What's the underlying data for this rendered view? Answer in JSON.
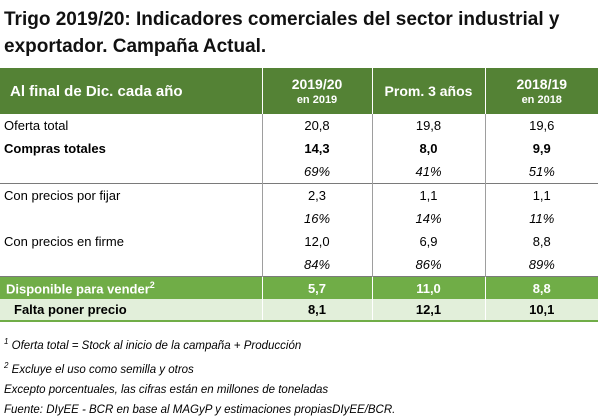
{
  "title": "Trigo 2019/20: Indicadores comerciales del sector industrial y exportador. Campaña Actual.",
  "header": {
    "label": "Al final de Dic. cada año",
    "col1_main": "2019/20",
    "col1_sub": "en 2019",
    "col2": "Prom. 3 años",
    "col3_main": "2018/19",
    "col3_sub": "en 2018"
  },
  "rows": [
    {
      "label": "Oferta total",
      "v1": "20,8",
      "v2": "19,8",
      "v3": "19,6"
    },
    {
      "label": "Compras totales",
      "v1": "14,3",
      "v2": "8,0",
      "v3": "9,9"
    },
    {
      "label": "",
      "v1": "69%",
      "v2": "41%",
      "v3": "51%"
    },
    {
      "label": "Con precios por fijar",
      "v1": "2,3",
      "v2": "1,1",
      "v3": "1,1"
    },
    {
      "label": "",
      "v1": "16%",
      "v2": "14%",
      "v3": "11%"
    },
    {
      "label": "Con precios en firme",
      "v1": "12,0",
      "v2": "6,9",
      "v3": "8,8"
    },
    {
      "label": "",
      "v1": "84%",
      "v2": "86%",
      "v3": "89%"
    },
    {
      "label": "Disponible para vender",
      "sup": "2",
      "v1": "5,7",
      "v2": "11,0",
      "v3": "8,8"
    },
    {
      "label": "Falta poner precio",
      "v1": "8,1",
      "v2": "12,1",
      "v3": "10,1"
    }
  ],
  "notes": {
    "n1_sup": "1",
    "n1": "Oferta total = Stock al inicio de la campaña + Producción",
    "n2_sup": "2",
    "n2": "Excluye el uso como semilla y otros",
    "n3": "Excepto porcentuales, las cifras están en millones de toneladas",
    "n4": "Fuente: DIyEE - BCR en base al MAGyP y estimaciones propiasDIyEE/BCR."
  }
}
